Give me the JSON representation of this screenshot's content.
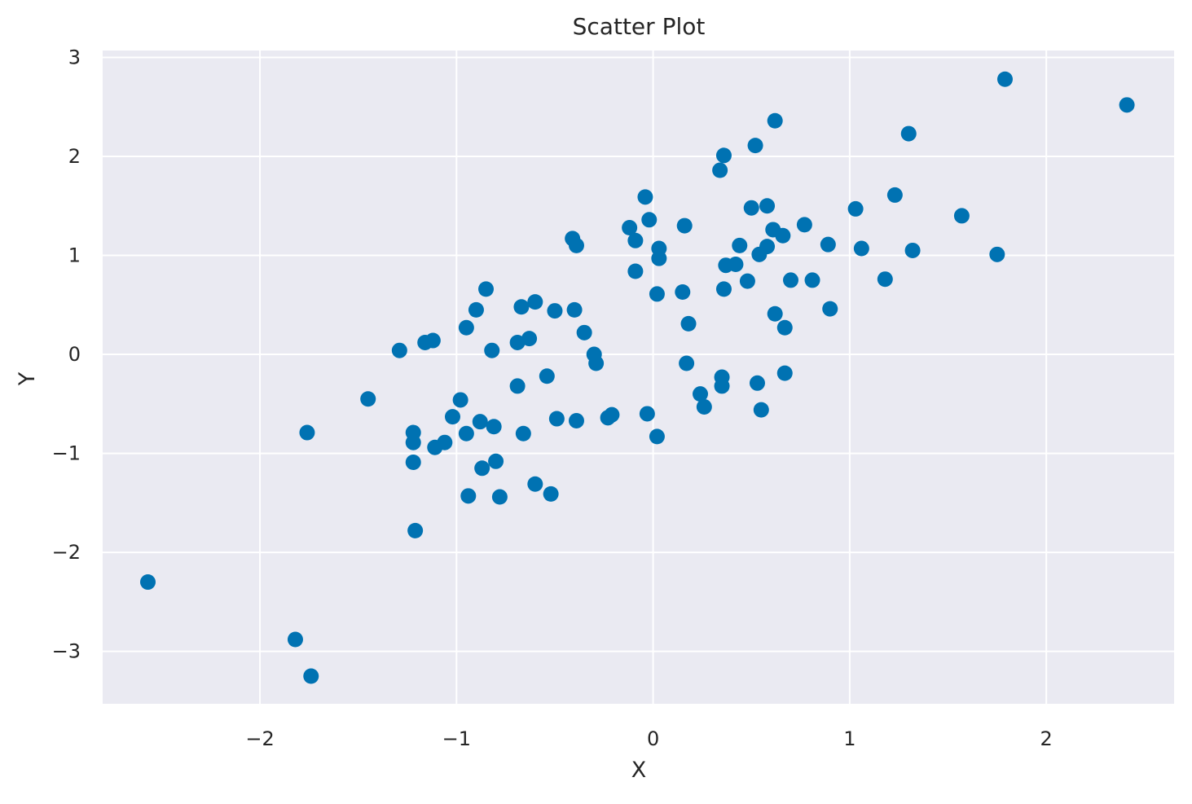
{
  "chart_data": {
    "type": "scatter",
    "title": "Scatter Plot",
    "xlabel": "X",
    "ylabel": "Y",
    "xlim": [
      -2.8,
      2.65
    ],
    "ylim": [
      -3.53,
      3.07
    ],
    "xticks": [
      -2,
      -1,
      0,
      1,
      2
    ],
    "yticks": [
      -3,
      -2,
      -1,
      0,
      1,
      2,
      3
    ],
    "xtick_labels": [
      "−2",
      "−1",
      "0",
      "1",
      "2"
    ],
    "ytick_labels": [
      "−3",
      "−2",
      "−1",
      "0",
      "1",
      "2",
      "3"
    ],
    "grid": true,
    "background_color": "#eaeaf2",
    "marker_color": "#0072b2",
    "points": [
      {
        "x": -2.57,
        "y": -2.3
      },
      {
        "x": -1.82,
        "y": -2.88
      },
      {
        "x": -1.74,
        "y": -3.25
      },
      {
        "x": -1.76,
        "y": -0.79
      },
      {
        "x": -1.45,
        "y": -0.45
      },
      {
        "x": -1.29,
        "y": 0.04
      },
      {
        "x": -1.22,
        "y": -0.79
      },
      {
        "x": -1.22,
        "y": -0.89
      },
      {
        "x": -1.22,
        "y": -1.09
      },
      {
        "x": -1.21,
        "y": -1.78
      },
      {
        "x": -1.16,
        "y": 0.12
      },
      {
        "x": -1.12,
        "y": 0.14
      },
      {
        "x": -1.11,
        "y": -0.94
      },
      {
        "x": -1.06,
        "y": -0.89
      },
      {
        "x": -1.02,
        "y": -0.63
      },
      {
        "x": -0.98,
        "y": -0.46
      },
      {
        "x": -0.95,
        "y": 0.27
      },
      {
        "x": -0.95,
        "y": -0.8
      },
      {
        "x": -0.94,
        "y": -1.43
      },
      {
        "x": -0.9,
        "y": 0.45
      },
      {
        "x": -0.88,
        "y": -0.68
      },
      {
        "x": -0.87,
        "y": -1.15
      },
      {
        "x": -0.85,
        "y": 0.66
      },
      {
        "x": -0.82,
        "y": 0.04
      },
      {
        "x": -0.81,
        "y": -0.73
      },
      {
        "x": -0.8,
        "y": -1.08
      },
      {
        "x": -0.78,
        "y": -1.44
      },
      {
        "x": -0.69,
        "y": 0.12
      },
      {
        "x": -0.69,
        "y": -0.32
      },
      {
        "x": -0.67,
        "y": 0.48
      },
      {
        "x": -0.66,
        "y": -0.8
      },
      {
        "x": -0.63,
        "y": 0.16
      },
      {
        "x": -0.6,
        "y": 0.53
      },
      {
        "x": -0.6,
        "y": -1.31
      },
      {
        "x": -0.54,
        "y": -0.22
      },
      {
        "x": -0.52,
        "y": -1.41
      },
      {
        "x": -0.5,
        "y": 0.44
      },
      {
        "x": -0.49,
        "y": -0.65
      },
      {
        "x": -0.41,
        "y": 1.17
      },
      {
        "x": -0.4,
        "y": 0.45
      },
      {
        "x": -0.39,
        "y": -0.67
      },
      {
        "x": -0.39,
        "y": 1.1
      },
      {
        "x": -0.35,
        "y": 0.22
      },
      {
        "x": -0.3,
        "y": 0.0
      },
      {
        "x": -0.29,
        "y": -0.09
      },
      {
        "x": -0.23,
        "y": -0.64
      },
      {
        "x": -0.21,
        "y": -0.61
      },
      {
        "x": -0.12,
        "y": 1.28
      },
      {
        "x": -0.09,
        "y": 1.15
      },
      {
        "x": -0.09,
        "y": 0.84
      },
      {
        "x": -0.04,
        "y": 1.59
      },
      {
        "x": -0.03,
        "y": -0.6
      },
      {
        "x": -0.02,
        "y": 1.36
      },
      {
        "x": 0.02,
        "y": 0.61
      },
      {
        "x": 0.03,
        "y": 1.07
      },
      {
        "x": 0.03,
        "y": 0.97
      },
      {
        "x": 0.02,
        "y": -0.83
      },
      {
        "x": 0.15,
        "y": 0.63
      },
      {
        "x": 0.16,
        "y": 1.3
      },
      {
        "x": 0.17,
        "y": -0.09
      },
      {
        "x": 0.18,
        "y": 0.31
      },
      {
        "x": 0.24,
        "y": -0.4
      },
      {
        "x": 0.26,
        "y": -0.53
      },
      {
        "x": 0.34,
        "y": 1.86
      },
      {
        "x": 0.35,
        "y": -0.23
      },
      {
        "x": 0.35,
        "y": -0.32
      },
      {
        "x": 0.36,
        "y": 2.01
      },
      {
        "x": 0.36,
        "y": 0.66
      },
      {
        "x": 0.37,
        "y": 0.9
      },
      {
        "x": 0.42,
        "y": 0.91
      },
      {
        "x": 0.44,
        "y": 1.1
      },
      {
        "x": 0.48,
        "y": 0.74
      },
      {
        "x": 0.5,
        "y": 1.48
      },
      {
        "x": 0.52,
        "y": 2.11
      },
      {
        "x": 0.53,
        "y": -0.29
      },
      {
        "x": 0.54,
        "y": 1.01
      },
      {
        "x": 0.55,
        "y": -0.56
      },
      {
        "x": 0.58,
        "y": 1.5
      },
      {
        "x": 0.58,
        "y": 1.09
      },
      {
        "x": 0.61,
        "y": 1.26
      },
      {
        "x": 0.62,
        "y": 2.36
      },
      {
        "x": 0.62,
        "y": 0.41
      },
      {
        "x": 0.66,
        "y": 1.2
      },
      {
        "x": 0.67,
        "y": 0.27
      },
      {
        "x": 0.67,
        "y": -0.19
      },
      {
        "x": 0.7,
        "y": 0.75
      },
      {
        "x": 0.77,
        "y": 1.31
      },
      {
        "x": 0.81,
        "y": 0.75
      },
      {
        "x": 0.89,
        "y": 1.11
      },
      {
        "x": 0.9,
        "y": 0.46
      },
      {
        "x": 1.03,
        "y": 1.47
      },
      {
        "x": 1.06,
        "y": 1.07
      },
      {
        "x": 1.18,
        "y": 0.76
      },
      {
        "x": 1.23,
        "y": 1.61
      },
      {
        "x": 1.3,
        "y": 2.23
      },
      {
        "x": 1.32,
        "y": 1.05
      },
      {
        "x": 1.57,
        "y": 1.4
      },
      {
        "x": 1.75,
        "y": 1.01
      },
      {
        "x": 1.79,
        "y": 2.78
      },
      {
        "x": 2.41,
        "y": 2.52
      }
    ]
  }
}
